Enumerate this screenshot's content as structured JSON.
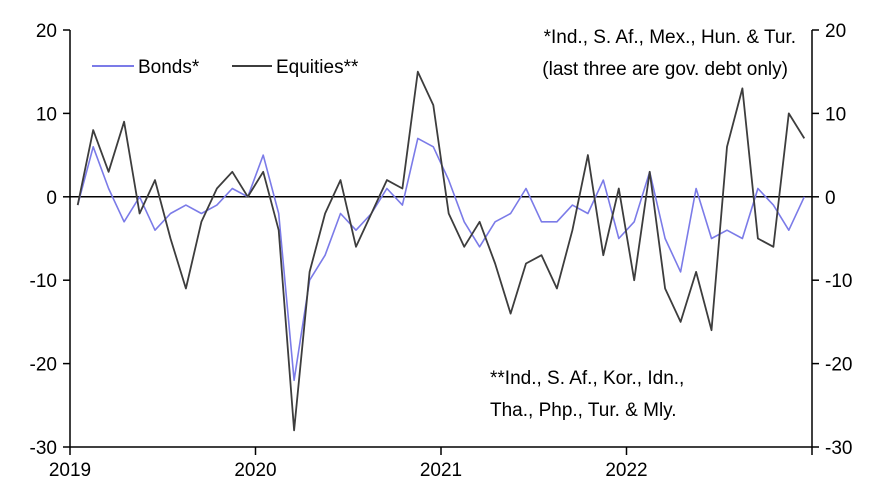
{
  "chart_data": {
    "type": "line",
    "x_ticks": [
      "2019",
      "2020",
      "2021",
      "2022"
    ],
    "y_left_ticks": [
      20,
      10,
      0,
      -10,
      -20,
      -30
    ],
    "y_right_ticks": [
      20,
      10,
      0,
      -10,
      -20,
      -30
    ],
    "ylim": [
      -30,
      20
    ],
    "xlim": [
      "2019-01",
      "2022-12"
    ],
    "grid": false,
    "legend_position": "top-left",
    "notes": [
      "*Ind., S. Af., Mex., Hun. & Tur.",
      "(last three are gov. debt only)",
      "**Ind., S. Af., Kor., Idn.,",
      "Tha., Php., Tur. & Mly."
    ],
    "series": [
      {
        "name": "Bonds*",
        "color": "#7b7be8",
        "x": [
          "2019-01",
          "2019-02",
          "2019-03",
          "2019-04",
          "2019-05",
          "2019-06",
          "2019-07",
          "2019-08",
          "2019-09",
          "2019-10",
          "2019-11",
          "2019-12",
          "2020-01",
          "2020-02",
          "2020-03",
          "2020-04",
          "2020-05",
          "2020-06",
          "2020-07",
          "2020-08",
          "2020-09",
          "2020-10",
          "2020-11",
          "2020-12",
          "2021-01",
          "2021-02",
          "2021-03",
          "2021-04",
          "2021-05",
          "2021-06",
          "2021-07",
          "2021-08",
          "2021-09",
          "2021-10",
          "2021-11",
          "2021-12",
          "2022-01",
          "2022-02",
          "2022-03",
          "2022-04",
          "2022-05",
          "2022-06",
          "2022-07",
          "2022-08",
          "2022-09",
          "2022-10",
          "2022-11",
          "2022-12"
        ],
        "values": [
          -1,
          6,
          1,
          -3,
          0,
          -4,
          -2,
          -1,
          -2,
          -1,
          1,
          0,
          5,
          -2,
          -22,
          -10,
          -7,
          -2,
          -4,
          -2,
          1,
          -1,
          7,
          6,
          2,
          -3,
          -6,
          -3,
          -2,
          1,
          -3,
          -3,
          -1,
          -2,
          2,
          -5,
          -3,
          3,
          -5,
          -9,
          1,
          -5,
          -4,
          -5,
          1,
          -1,
          -4,
          0
        ]
      },
      {
        "name": "Equities**",
        "color": "#3d3d3d",
        "x": [
          "2019-01",
          "2019-02",
          "2019-03",
          "2019-04",
          "2019-05",
          "2019-06",
          "2019-07",
          "2019-08",
          "2019-09",
          "2019-10",
          "2019-11",
          "2019-12",
          "2020-01",
          "2020-02",
          "2020-03",
          "2020-04",
          "2020-05",
          "2020-06",
          "2020-07",
          "2020-08",
          "2020-09",
          "2020-10",
          "2020-11",
          "2020-12",
          "2021-01",
          "2021-02",
          "2021-03",
          "2021-04",
          "2021-05",
          "2021-06",
          "2021-07",
          "2021-08",
          "2021-09",
          "2021-10",
          "2021-11",
          "2021-12",
          "2022-01",
          "2022-02",
          "2022-03",
          "2022-04",
          "2022-05",
          "2022-06",
          "2022-07",
          "2022-08",
          "2022-09",
          "2022-10",
          "2022-11",
          "2022-12"
        ],
        "values": [
          -1,
          8,
          3,
          9,
          -2,
          2,
          -5,
          -11,
          -3,
          1,
          3,
          0,
          3,
          -4,
          -28,
          -9,
          -2,
          2,
          -6,
          -2,
          2,
          1,
          15,
          11,
          -2,
          -6,
          -3,
          -8,
          -14,
          -8,
          -7,
          -11,
          -4,
          5,
          -7,
          1,
          -10,
          3,
          -11,
          -15,
          -9,
          -16,
          6,
          13,
          -5,
          -6,
          10,
          7
        ]
      }
    ]
  }
}
